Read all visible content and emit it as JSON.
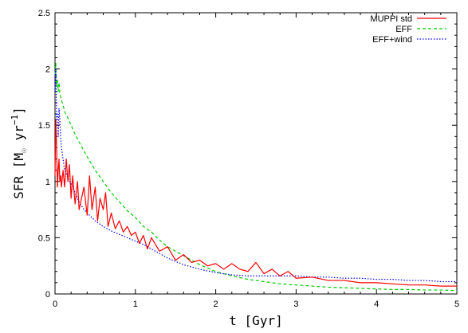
{
  "chart_data": {
    "type": "line",
    "xlabel": "t  [Gyr]",
    "ylabel_main": "SFR  [M",
    "ylabel_sub": "☉",
    "ylabel_tail": " yr",
    "ylabel_sup": "−1",
    "ylabel_close": "]",
    "xlim": [
      0,
      5
    ],
    "ylim": [
      0,
      2.5
    ],
    "xticks": [
      0,
      1,
      2,
      3,
      4,
      5
    ],
    "xtick_labels": [
      "0",
      "1",
      "2",
      "3",
      "4",
      "5"
    ],
    "yticks": [
      0,
      0.5,
      1,
      1.5,
      2,
      2.5
    ],
    "ytick_labels": [
      "0",
      "0.5",
      "1",
      "1.5",
      "2",
      "2.5"
    ],
    "legend_position": "top-right",
    "grid": false,
    "series": [
      {
        "name": "MUPPI std",
        "color": "#ff0000",
        "dash": "solid",
        "x": [
          0.0,
          0.01,
          0.02,
          0.03,
          0.04,
          0.05,
          0.06,
          0.07,
          0.08,
          0.1,
          0.12,
          0.14,
          0.16,
          0.18,
          0.2,
          0.22,
          0.25,
          0.28,
          0.3,
          0.33,
          0.36,
          0.4,
          0.43,
          0.46,
          0.5,
          0.53,
          0.56,
          0.6,
          0.63,
          0.66,
          0.7,
          0.75,
          0.8,
          0.85,
          0.9,
          0.95,
          1.0,
          1.05,
          1.1,
          1.15,
          1.2,
          1.3,
          1.4,
          1.5,
          1.6,
          1.7,
          1.8,
          1.9,
          2.0,
          2.1,
          2.2,
          2.3,
          2.4,
          2.5,
          2.6,
          2.7,
          2.8,
          2.9,
          3.0,
          3.2,
          3.4,
          3.6,
          3.8,
          4.0,
          4.2,
          4.4,
          4.6,
          4.8,
          5.0
        ],
        "y": [
          1.05,
          1.55,
          1.3,
          0.95,
          1.1,
          1.2,
          1.0,
          1.05,
          0.95,
          1.1,
          0.95,
          1.2,
          1.0,
          1.15,
          0.85,
          1.05,
          0.8,
          1.0,
          0.75,
          0.85,
          0.95,
          0.7,
          1.05,
          0.75,
          0.95,
          0.65,
          0.85,
          0.75,
          0.9,
          0.6,
          0.72,
          0.58,
          0.65,
          0.55,
          0.6,
          0.52,
          0.55,
          0.45,
          0.52,
          0.4,
          0.5,
          0.38,
          0.42,
          0.3,
          0.35,
          0.28,
          0.3,
          0.25,
          0.27,
          0.22,
          0.27,
          0.22,
          0.2,
          0.28,
          0.18,
          0.22,
          0.16,
          0.2,
          0.14,
          0.15,
          0.12,
          0.12,
          0.1,
          0.1,
          0.09,
          0.08,
          0.08,
          0.07,
          0.07
        ]
      },
      {
        "name": "EFF",
        "color": "#00cc00",
        "dash": "4,3",
        "x": [
          0.0,
          0.01,
          0.02,
          0.03,
          0.04,
          0.05,
          0.06,
          0.07,
          0.08,
          0.1,
          0.12,
          0.15,
          0.2,
          0.25,
          0.3,
          0.4,
          0.5,
          0.6,
          0.7,
          0.8,
          0.9,
          1.0,
          1.1,
          1.2,
          1.3,
          1.4,
          1.5,
          1.6,
          1.7,
          1.8,
          1.9,
          2.0,
          2.2,
          2.4,
          2.6,
          2.8,
          3.0,
          3.2,
          3.4,
          3.6,
          3.8,
          4.0,
          4.2,
          4.4,
          4.6,
          4.8,
          5.0
        ],
        "y": [
          1.95,
          2.05,
          1.85,
          1.9,
          1.8,
          1.88,
          1.78,
          1.75,
          1.72,
          1.68,
          1.62,
          1.58,
          1.5,
          1.42,
          1.35,
          1.22,
          1.1,
          1.0,
          0.9,
          0.82,
          0.74,
          0.68,
          0.6,
          0.55,
          0.48,
          0.42,
          0.38,
          0.34,
          0.3,
          0.26,
          0.23,
          0.2,
          0.16,
          0.13,
          0.11,
          0.09,
          0.08,
          0.07,
          0.06,
          0.055,
          0.05,
          0.045,
          0.04,
          0.04,
          0.035,
          0.035,
          0.03
        ]
      },
      {
        "name": "EFF+wind",
        "color": "#0000ff",
        "dash": "1.5,2",
        "x": [
          0.0,
          0.01,
          0.02,
          0.03,
          0.04,
          0.05,
          0.06,
          0.07,
          0.08,
          0.1,
          0.12,
          0.15,
          0.18,
          0.2,
          0.25,
          0.3,
          0.35,
          0.4,
          0.5,
          0.6,
          0.7,
          0.8,
          0.9,
          1.0,
          1.1,
          1.2,
          1.3,
          1.4,
          1.6,
          1.8,
          2.0,
          2.2,
          2.4,
          2.6,
          2.8,
          3.0,
          3.2,
          3.4,
          3.6,
          3.8,
          4.0,
          4.2,
          4.4,
          4.6,
          4.8,
          5.0
        ],
        "y": [
          1.8,
          2.0,
          1.55,
          1.6,
          1.4,
          1.65,
          1.55,
          1.4,
          1.3,
          1.2,
          1.1,
          1.05,
          1.0,
          0.98,
          0.9,
          0.82,
          0.76,
          0.72,
          0.65,
          0.6,
          0.56,
          0.53,
          0.5,
          0.47,
          0.44,
          0.4,
          0.36,
          0.32,
          0.26,
          0.22,
          0.19,
          0.17,
          0.16,
          0.16,
          0.16,
          0.16,
          0.15,
          0.15,
          0.14,
          0.14,
          0.13,
          0.13,
          0.12,
          0.12,
          0.11,
          0.11
        ]
      }
    ]
  }
}
